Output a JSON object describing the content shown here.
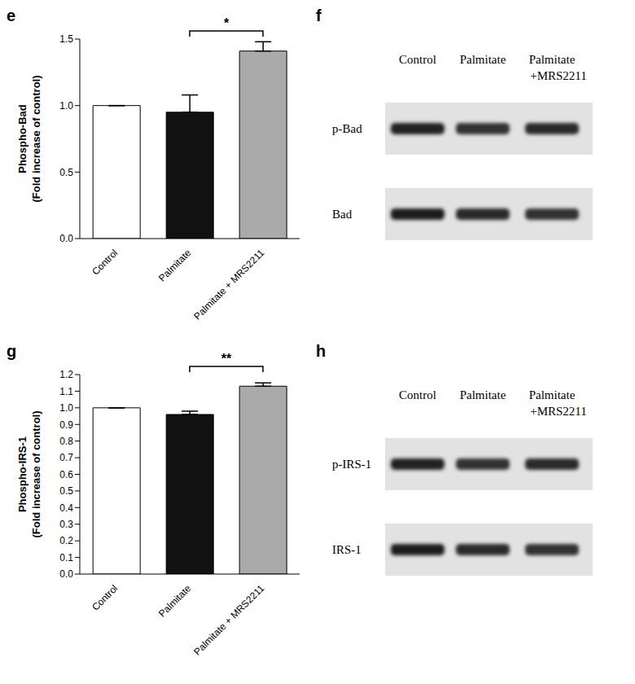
{
  "chart_data": [
    {
      "panel": "e",
      "type": "bar",
      "y_label": "Phospho-Bad\n(Fold increase of control)",
      "categories": [
        "Control",
        "Palmitate",
        "Palmitate + MRS2211"
      ],
      "values": [
        1.0,
        0.95,
        1.41
      ],
      "errors": [
        0,
        0.13,
        0.07
      ],
      "colors": [
        "#ffffff",
        "#111111",
        "#aaaaaa"
      ],
      "ylim": [
        0,
        1.5
      ],
      "yticks": [
        {
          "value": 0,
          "label": "0.0"
        },
        {
          "value": 0.5,
          "label": "0.5"
        },
        {
          "value": 1,
          "label": "1.0"
        },
        {
          "value": 1.5,
          "label": "1.5"
        }
      ],
      "annotations": [
        {
          "text": "*",
          "from": "Palmitate",
          "to": "Palmitate + MRS2211"
        }
      ]
    },
    {
      "panel": "g",
      "type": "bar",
      "y_label": "Phospho-IRS-1\n(Fold increase of control)",
      "categories": [
        "Control",
        "Palmitate",
        "Palmitate + MRS2211"
      ],
      "values": [
        1.0,
        0.96,
        1.13
      ],
      "errors": [
        0,
        0.02,
        0.02
      ],
      "colors": [
        "#ffffff",
        "#111111",
        "#aaaaaa"
      ],
      "ylim": [
        0,
        1.2
      ],
      "yticks": [
        {
          "value": 0,
          "label": "0.0"
        },
        {
          "value": 0.1,
          "label": "0.1"
        },
        {
          "value": 0.2,
          "label": "0.2"
        },
        {
          "value": 0.3,
          "label": "0.3"
        },
        {
          "value": 0.4,
          "label": "0.4"
        },
        {
          "value": 0.5,
          "label": "0.5"
        },
        {
          "value": 0.6,
          "label": "0.6"
        },
        {
          "value": 0.7,
          "label": "0.7"
        },
        {
          "value": 0.8,
          "label": "0.8"
        },
        {
          "value": 0.9,
          "label": "0.9"
        },
        {
          "value": 1,
          "label": "1.0"
        },
        {
          "value": 1.1,
          "label": "1.1"
        },
        {
          "value": 1.2,
          "label": "1.2"
        }
      ],
      "annotations": [
        {
          "text": "**",
          "from": "Palmitate",
          "to": "Palmitate + MRS2211"
        }
      ]
    }
  ],
  "blots": [
    {
      "panel": "f",
      "lanes": [
        "Control",
        "Palmitate",
        "Palmitate\n+MRS2211"
      ],
      "rows": [
        "p-Bad",
        "Bad"
      ]
    },
    {
      "panel": "h",
      "lanes": [
        "Control",
        "Palmitate",
        "Palmitate\n+MRS2211"
      ],
      "rows": [
        "p-IRS-1",
        "IRS-1"
      ]
    }
  ]
}
